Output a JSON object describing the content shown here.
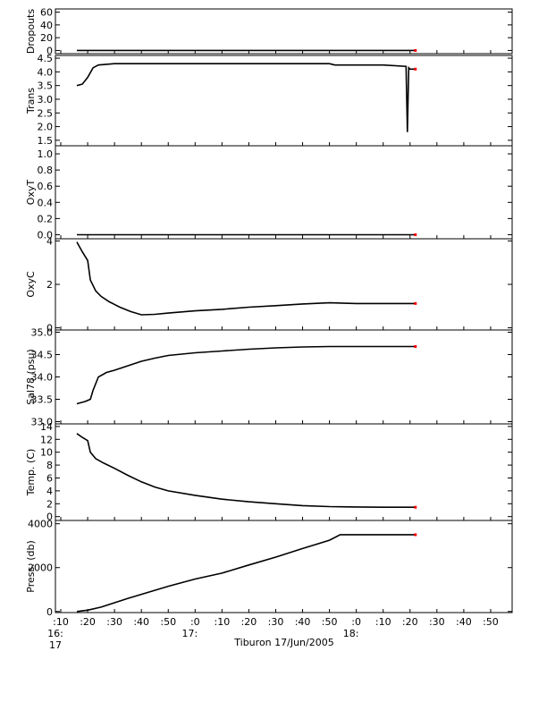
{
  "figure": {
    "xlabel": "Tiburon 17/Jun/2005",
    "x_ticks": [
      ":10",
      ":20",
      ":30",
      ":40",
      ":50",
      ":0",
      ":10",
      ":20",
      ":30",
      ":40",
      ":50",
      ":0",
      ":10",
      ":20",
      ":30",
      ":40",
      ":50"
    ],
    "x_hour_labels": [
      {
        "at": 0,
        "line1": "16:",
        "line2": "17"
      },
      {
        "at": 5,
        "line1": "17:",
        "line2": ""
      },
      {
        "at": 11,
        "line1": "18:",
        "line2": ""
      }
    ]
  },
  "colors": {
    "line": "#000000",
    "noise": "#ff0000",
    "axis": "#000000",
    "endpoint": "#ff0000"
  },
  "chart_data": [
    {
      "type": "line",
      "ylabel": "Dropouts",
      "ylim": [
        -5,
        65
      ],
      "yticks": [
        "0",
        "20",
        "40",
        "60"
      ],
      "ytick_values": [
        0,
        20,
        40,
        60
      ],
      "x": [
        0.6,
        13.2
      ],
      "series": [
        {
          "values": [
            0,
            0
          ]
        }
      ]
    },
    {
      "type": "line",
      "ylabel": "Trans",
      "ylim": [
        1.3,
        4.6
      ],
      "yticks": [
        "1.5",
        "2.0",
        "2.5",
        "3.0",
        "3.5",
        "4.0",
        "4.5"
      ],
      "ytick_values": [
        1.5,
        2.0,
        2.5,
        3.0,
        3.5,
        4.0,
        4.5
      ],
      "x": [
        0.6,
        0.8,
        1.0,
        1.2,
        1.4,
        2.0,
        3.0,
        5.0,
        7.0,
        10.0,
        10.2,
        11.0,
        12.0,
        12.85,
        12.9,
        12.95,
        13.0,
        13.2
      ],
      "series": [
        {
          "values": [
            3.5,
            3.55,
            3.8,
            4.15,
            4.25,
            4.3,
            4.3,
            4.3,
            4.3,
            4.3,
            4.25,
            4.25,
            4.25,
            4.2,
            1.8,
            4.15,
            4.1,
            4.1
          ]
        }
      ]
    },
    {
      "type": "line",
      "ylabel": "OxyT",
      "ylim": [
        -0.05,
        1.1
      ],
      "yticks": [
        "0.0",
        "0.2",
        "0.4",
        "0.6",
        "0.8",
        "1.0"
      ],
      "ytick_values": [
        0,
        0.2,
        0.4,
        0.6,
        0.8,
        1.0
      ],
      "x": [
        0.6,
        13.2
      ],
      "series": [
        {
          "values": [
            0,
            0
          ]
        }
      ]
    },
    {
      "type": "line",
      "ylabel": "OxyC",
      "ylim": [
        -0.1,
        4.1
      ],
      "yticks": [
        "0",
        "2",
        "4"
      ],
      "ytick_values": [
        0,
        2,
        4
      ],
      "x": [
        0.6,
        0.8,
        1.0,
        1.1,
        1.3,
        1.5,
        1.8,
        2.2,
        2.6,
        3.0,
        3.5,
        4.0,
        5.0,
        6.0,
        7.0,
        8.0,
        9.0,
        10.0,
        11.0,
        12.0,
        13.0,
        13.2
      ],
      "series": [
        {
          "values": [
            3.95,
            3.5,
            3.1,
            2.2,
            1.7,
            1.45,
            1.2,
            0.95,
            0.75,
            0.6,
            0.62,
            0.68,
            0.78,
            0.85,
            0.95,
            1.02,
            1.1,
            1.15,
            1.12,
            1.12,
            1.12,
            1.12
          ]
        }
      ]
    },
    {
      "type": "line",
      "ylabel": "Sal78 (psu)",
      "ylim": [
        32.95,
        35.05
      ],
      "yticks": [
        "33.0",
        "33.5",
        "34.0",
        "34.5",
        "35.0"
      ],
      "ytick_values": [
        33.0,
        33.5,
        34.0,
        34.5,
        35.0
      ],
      "x": [
        0.6,
        0.9,
        1.1,
        1.2,
        1.4,
        1.7,
        2.0,
        2.5,
        3.0,
        3.5,
        4.0,
        5.0,
        6.0,
        7.0,
        8.0,
        9.0,
        10.0,
        11.0,
        12.0,
        13.0,
        13.2
      ],
      "series": [
        {
          "values": [
            33.4,
            33.45,
            33.5,
            33.7,
            34.0,
            34.1,
            34.15,
            34.25,
            34.35,
            34.42,
            34.48,
            34.54,
            34.58,
            34.62,
            34.65,
            34.67,
            34.68,
            34.68,
            34.68,
            34.68,
            34.68
          ]
        }
      ]
    },
    {
      "type": "line",
      "ylabel": "Temp. (C)",
      "ylim": [
        -0.6,
        14.4
      ],
      "yticks": [
        "0",
        "2",
        "4",
        "6",
        "8",
        "10",
        "12",
        "14"
      ],
      "ytick_values": [
        0,
        2,
        4,
        6,
        8,
        10,
        12,
        14
      ],
      "x": [
        0.6,
        0.8,
        1.0,
        1.1,
        1.3,
        1.6,
        2.0,
        2.5,
        3.0,
        3.5,
        4.0,
        5.0,
        6.0,
        7.0,
        8.0,
        9.0,
        10.0,
        11.0,
        12.0,
        13.0,
        13.2
      ],
      "series": [
        {
          "values": [
            12.9,
            12.3,
            11.8,
            10.0,
            9.0,
            8.3,
            7.5,
            6.4,
            5.4,
            4.6,
            4.0,
            3.3,
            2.7,
            2.3,
            2.0,
            1.7,
            1.55,
            1.5,
            1.45,
            1.45,
            1.45
          ]
        }
      ]
    },
    {
      "type": "line",
      "ylabel": "Press. (db)",
      "ylim": [
        -50,
        4150
      ],
      "yticks": [
        "0",
        "2000",
        "4000"
      ],
      "ytick_values": [
        0,
        2000,
        4000
      ],
      "x": [
        0.6,
        1.0,
        1.5,
        2.0,
        2.5,
        3.0,
        4.0,
        5.0,
        6.0,
        7.0,
        8.0,
        9.0,
        10.0,
        10.4,
        11.0,
        12.0,
        13.0,
        13.2
      ],
      "series": [
        {
          "values": [
            0,
            60,
            200,
            400,
            600,
            780,
            1150,
            1480,
            1750,
            2120,
            2480,
            2870,
            3250,
            3500,
            3500,
            3500,
            3500,
            3500
          ]
        }
      ]
    }
  ]
}
